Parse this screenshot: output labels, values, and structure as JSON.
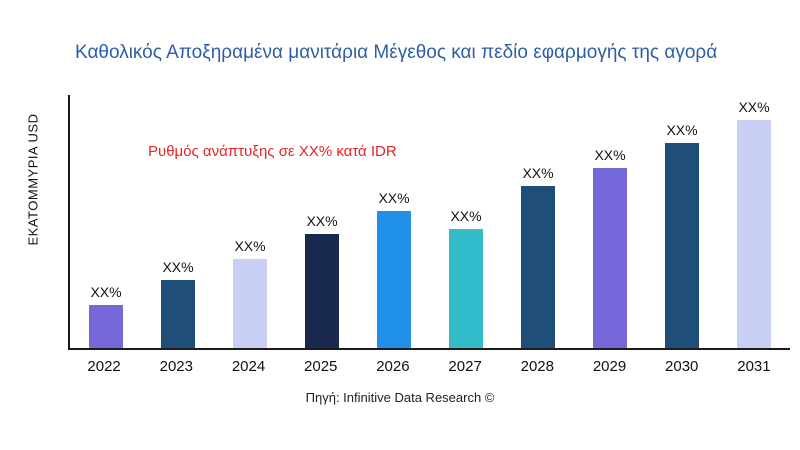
{
  "chart_data": {
    "type": "bar",
    "title": "Καθολικός Αποξηραμένα μανιτάρια Μέγεθος και πεδίο εφαρμογής της αγορά",
    "title_color": "#2D5FA6",
    "xlabel": "",
    "ylabel": "ΕΚΑΤΟΜΜΥΡΙΑ USD",
    "categories": [
      "2022",
      "2023",
      "2024",
      "2025",
      "2026",
      "2027",
      "2028",
      "2029",
      "2030",
      "2031"
    ],
    "values": [
      17,
      27,
      35,
      45,
      54,
      47,
      64,
      71,
      81,
      90
    ],
    "bar_labels": [
      "XX%",
      "XX%",
      "XX%",
      "XX%",
      "XX%",
      "XX%",
      "XX%",
      "XX%",
      "XX%",
      "XX%"
    ],
    "colors": [
      "#7568D8",
      "#1F4E79",
      "#C9CEF4",
      "#1A2950",
      "#2090EA",
      "#33BCC9",
      "#1F4E79",
      "#7568D8",
      "#1F4E79",
      "#C9CEF4"
    ],
    "ylim": [
      0,
      100
    ],
    "grid": false,
    "legend": "none",
    "annotation": "Ρυθμός ανάπτυξης σε XX% κατά IDR",
    "annotation_color": "#E42527"
  },
  "source": {
    "text": "Πηγή: Infinitive Data Research ©"
  }
}
